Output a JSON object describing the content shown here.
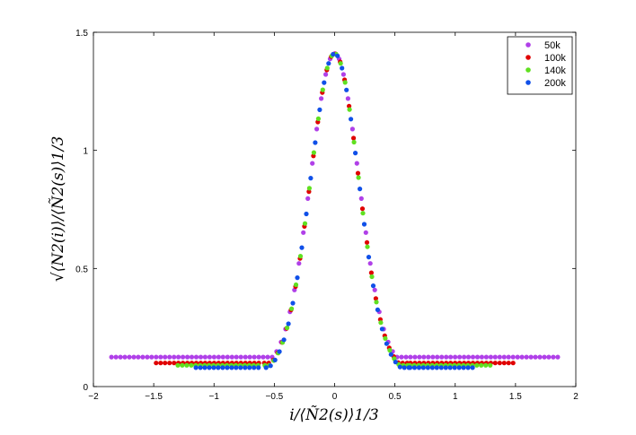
{
  "chart_data": {
    "type": "scatter",
    "xlabel": "i/⟨Ñ2(s)⟩1/3",
    "ylabel": "√⟨N2(i)⟩/⟨Ñ2(s)⟩1/3",
    "xlim": [
      -2,
      2
    ],
    "ylim": [
      0,
      1.5
    ],
    "xticks": [
      -2,
      -1.5,
      -1,
      -0.5,
      0,
      0.5,
      1,
      1.5,
      2
    ],
    "yticks": [
      0,
      0.5,
      1,
      1.5
    ],
    "xtick_labels": [
      "−2",
      "−1.5",
      "−1",
      "−0.5",
      "0",
      "0.5",
      "1",
      "1.5",
      "2"
    ],
    "ytick_labels": [
      "0",
      "0.5",
      "1",
      "1.5"
    ],
    "grid": false,
    "legend_position": "top-right",
    "curve": {
      "peak": 1.41,
      "sigma": 0.2
    },
    "series": [
      {
        "name": "50k",
        "color": "#b040e8",
        "x_range": [
          -1.85,
          1.85
        ],
        "baseline": 0.125
      },
      {
        "name": "100k",
        "color": "#e00000",
        "x_range": [
          -1.48,
          1.48
        ],
        "baseline": 0.1
      },
      {
        "name": "140k",
        "color": "#60e020",
        "x_range": [
          -1.3,
          1.3
        ],
        "baseline": 0.09
      },
      {
        "name": "200k",
        "color": "#1050e8",
        "x_range": [
          -1.15,
          1.15
        ],
        "baseline": 0.08
      }
    ]
  }
}
